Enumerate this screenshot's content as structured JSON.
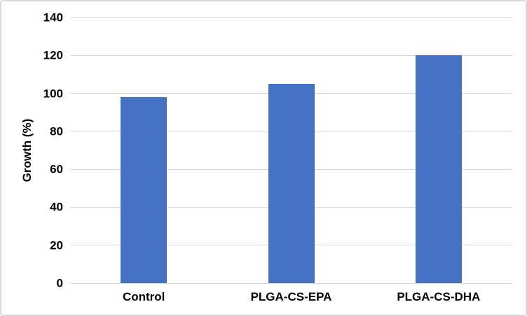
{
  "figure": {
    "background": "#FFFFFF",
    "border_color": "#D9D9D9"
  },
  "chart_data": {
    "type": "bar",
    "title": "",
    "categories": [
      "Control",
      "PLGA-CS-EPA",
      "PLGA-CS-DHA"
    ],
    "values": [
      98,
      105,
      120
    ],
    "xlabel": "",
    "ylabel": "Growth (%)",
    "ylim": [
      0,
      140
    ],
    "ytick_step": 20,
    "yticks": [
      0,
      20,
      40,
      60,
      80,
      100,
      120,
      140
    ],
    "grid": true,
    "gridline_color": "#D9D9D9",
    "bar_color": "#4472C4",
    "text_color": "#000000",
    "legend": false
  }
}
